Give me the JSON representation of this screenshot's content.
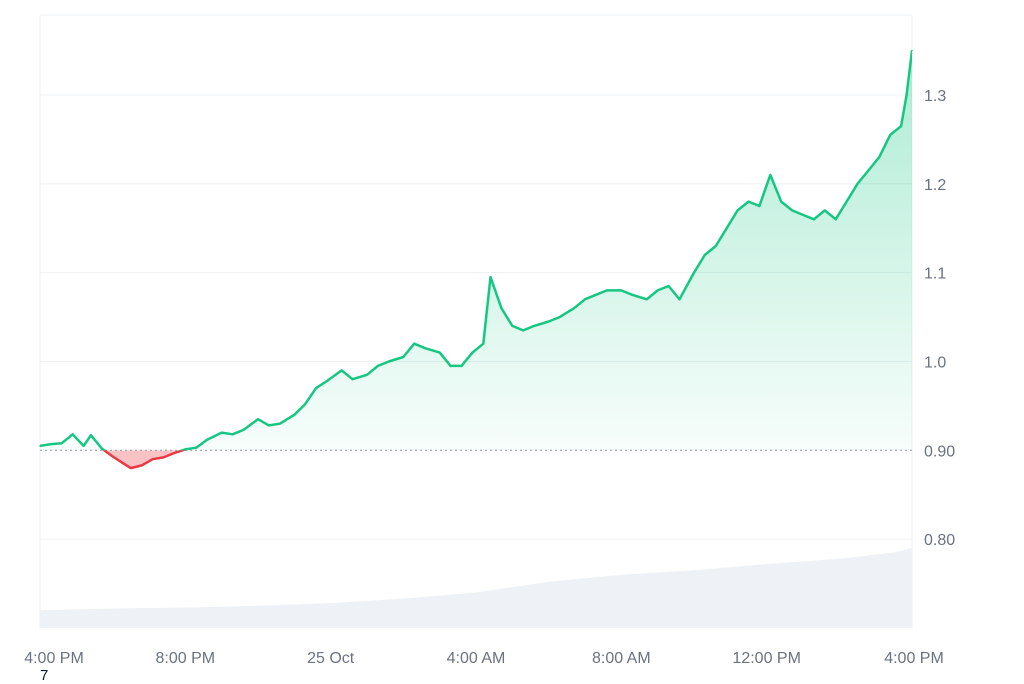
{
  "chart_data": {
    "type": "area",
    "baseline": 0.9,
    "ylim": [
      0.7,
      1.39
    ],
    "y_ticks": [
      {
        "label": "1.3",
        "value": 1.3
      },
      {
        "label": "1.2",
        "value": 1.2
      },
      {
        "label": "1.1",
        "value": 1.1
      },
      {
        "label": "1.0",
        "value": 1.0
      },
      {
        "label": "0.90",
        "value": 0.9
      },
      {
        "label": "0.80",
        "value": 0.8
      }
    ],
    "x_range_hours": [
      0,
      24
    ],
    "x_ticks": [
      {
        "label": "4:00 PM",
        "hour": 0
      },
      {
        "label": "8:00 PM",
        "hour": 4
      },
      {
        "label": "25 Oct",
        "hour": 8
      },
      {
        "label": "4:00 AM",
        "hour": 12
      },
      {
        "label": "8:00 AM",
        "hour": 16
      },
      {
        "label": "12:00 PM",
        "hour": 20
      },
      {
        "label": "4:00 PM",
        "hour": 24
      }
    ],
    "series": [
      {
        "values": [
          [
            0.0,
            0.905
          ],
          [
            0.3,
            0.907
          ],
          [
            0.6,
            0.908
          ],
          [
            0.9,
            0.918
          ],
          [
            1.2,
            0.905
          ],
          [
            1.4,
            0.917
          ],
          [
            1.7,
            0.902
          ],
          [
            2.0,
            0.893
          ],
          [
            2.3,
            0.885
          ],
          [
            2.5,
            0.88
          ],
          [
            2.8,
            0.883
          ],
          [
            3.1,
            0.89
          ],
          [
            3.4,
            0.892
          ],
          [
            3.7,
            0.897
          ],
          [
            4.0,
            0.901
          ],
          [
            4.3,
            0.903
          ],
          [
            4.6,
            0.912
          ],
          [
            5.0,
            0.92
          ],
          [
            5.3,
            0.918
          ],
          [
            5.6,
            0.923
          ],
          [
            6.0,
            0.935
          ],
          [
            6.3,
            0.928
          ],
          [
            6.6,
            0.93
          ],
          [
            7.0,
            0.94
          ],
          [
            7.3,
            0.952
          ],
          [
            7.6,
            0.97
          ],
          [
            7.9,
            0.978
          ],
          [
            8.3,
            0.99
          ],
          [
            8.6,
            0.98
          ],
          [
            9.0,
            0.985
          ],
          [
            9.3,
            0.995
          ],
          [
            9.6,
            1.0
          ],
          [
            10.0,
            1.005
          ],
          [
            10.3,
            1.02
          ],
          [
            10.6,
            1.015
          ],
          [
            11.0,
            1.01
          ],
          [
            11.3,
            0.995
          ],
          [
            11.6,
            0.995
          ],
          [
            11.9,
            1.01
          ],
          [
            12.2,
            1.02
          ],
          [
            12.4,
            1.095
          ],
          [
            12.7,
            1.06
          ],
          [
            13.0,
            1.04
          ],
          [
            13.3,
            1.035
          ],
          [
            13.6,
            1.04
          ],
          [
            14.0,
            1.045
          ],
          [
            14.3,
            1.05
          ],
          [
            14.7,
            1.06
          ],
          [
            15.0,
            1.07
          ],
          [
            15.3,
            1.075
          ],
          [
            15.6,
            1.08
          ],
          [
            16.0,
            1.08
          ],
          [
            16.3,
            1.075
          ],
          [
            16.7,
            1.07
          ],
          [
            17.0,
            1.08
          ],
          [
            17.3,
            1.085
          ],
          [
            17.6,
            1.07
          ],
          [
            18.0,
            1.1
          ],
          [
            18.3,
            1.12
          ],
          [
            18.6,
            1.13
          ],
          [
            18.9,
            1.15
          ],
          [
            19.2,
            1.17
          ],
          [
            19.5,
            1.18
          ],
          [
            19.8,
            1.175
          ],
          [
            20.1,
            1.21
          ],
          [
            20.4,
            1.18
          ],
          [
            20.7,
            1.17
          ],
          [
            21.0,
            1.165
          ],
          [
            21.3,
            1.16
          ],
          [
            21.6,
            1.17
          ],
          [
            21.9,
            1.16
          ],
          [
            22.2,
            1.18
          ],
          [
            22.5,
            1.2
          ],
          [
            22.8,
            1.215
          ],
          [
            23.1,
            1.23
          ],
          [
            23.4,
            1.255
          ],
          [
            23.7,
            1.265
          ],
          [
            23.85,
            1.3
          ],
          [
            24.0,
            1.35
          ]
        ]
      }
    ],
    "volume_area": [
      [
        0.0,
        0.72
      ],
      [
        2.0,
        0.722
      ],
      [
        4.0,
        0.723
      ],
      [
        6.0,
        0.725
      ],
      [
        8.0,
        0.728
      ],
      [
        10.0,
        0.733
      ],
      [
        12.0,
        0.74
      ],
      [
        14.0,
        0.752
      ],
      [
        16.0,
        0.76
      ],
      [
        18.0,
        0.765
      ],
      [
        20.0,
        0.772
      ],
      [
        22.0,
        0.778
      ],
      [
        23.5,
        0.785
      ],
      [
        24.0,
        0.79
      ]
    ],
    "colors": {
      "up": "#16c784",
      "down": "#ea3943",
      "up_fill": "#16c784",
      "down_fill": "#ea3943",
      "volume": "#eef1f5",
      "grid": "#eef0f3",
      "baseline": "#9ca3af",
      "axis_text": "#6b7280"
    },
    "grid": true,
    "corner_label": "7"
  }
}
